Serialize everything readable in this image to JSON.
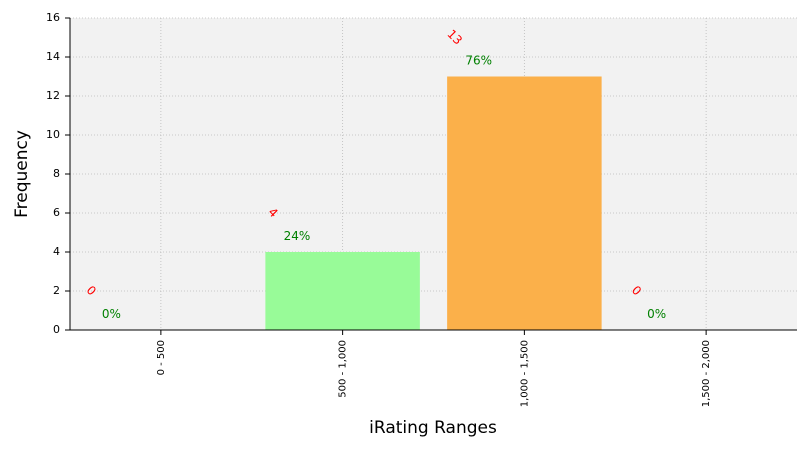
{
  "chart_data": {
    "type": "bar",
    "xlabel": "iRating Ranges",
    "ylabel": "Frequency",
    "categories": [
      "0 - 500",
      "500 - 1,000",
      "1,000 - 1,500",
      "1,500 - 2,000"
    ],
    "values": [
      0,
      4,
      13,
      0
    ],
    "percent_labels": [
      "0%",
      "24%",
      "76%",
      "0%"
    ],
    "colors": [
      "#f08080",
      "#98fb98",
      "#fbb04a",
      "#87cefa"
    ],
    "ylim": [
      0,
      16
    ],
    "yticks": [
      0,
      2,
      4,
      6,
      8,
      10,
      12,
      14,
      16
    ],
    "grid": true
  }
}
